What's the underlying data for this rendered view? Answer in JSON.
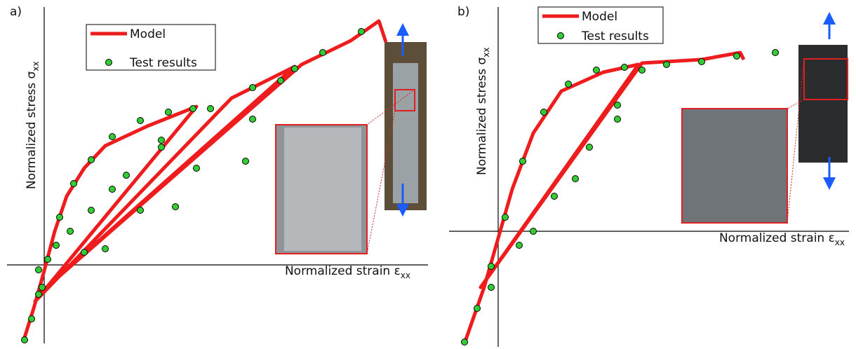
{
  "chart_data": [
    {
      "type": "line",
      "panel_label": "a)",
      "x_label": "Normalized strain ε",
      "x_label_sub": "xx",
      "y_label": "Normalized stress σ",
      "y_label_sub": "xx",
      "xlim": [
        -0.53,
        5.47
      ],
      "ylim": [
        -1.12,
        3.68
      ],
      "series": [
        {
          "name": "Model",
          "kind": "line",
          "color": "#ee1c1c",
          "x": [
            -0.3,
            -0.15,
            -0.01,
            0.15,
            0.32,
            0.57,
            0.87,
            1.47,
            2.17,
            -0.13,
            2.67,
            3.57,
            -0.08,
            3.67,
            4.37,
            4.77,
            4.87
          ],
          "values": [
            -1.1,
            -0.62,
            -0.12,
            0.48,
            0.98,
            1.38,
            1.7,
            1.98,
            2.26,
            -0.52,
            2.38,
            2.83,
            -0.42,
            2.86,
            3.2,
            3.48,
            3.18
          ]
        },
        {
          "name": "Test results",
          "kind": "scatter",
          "color": "#33cc33",
          "x": [
            -0.28,
            -0.18,
            -0.08,
            0.05,
            0.22,
            0.42,
            0.67,
            0.97,
            1.37,
            1.77,
            2.12,
            1.67,
            1.17,
            0.67,
            0.17,
            -0.08,
            0.37,
            0.97,
            1.67,
            2.37,
            2.97,
            3.57,
            2.97,
            2.17,
            1.37,
            0.57,
            -0.03,
            0.87,
            1.87,
            2.87,
            3.37,
            3.97,
            4.52
          ],
          "values": [
            -1.07,
            -0.77,
            -0.42,
            0.08,
            0.68,
            1.16,
            1.5,
            1.83,
            2.06,
            2.18,
            2.23,
            1.78,
            1.28,
            0.78,
            0.28,
            -0.07,
            0.48,
            1.08,
            1.68,
            2.23,
            2.53,
            2.8,
            2.08,
            1.38,
            0.78,
            0.18,
            -0.32,
            0.23,
            0.83,
            1.48,
            2.63,
            3.03,
            3.33
          ]
        }
      ]
    },
    {
      "type": "line",
      "panel_label": "b)",
      "x_label": "Normalized strain ε",
      "x_label_sub": "xx",
      "y_label": "Normalized stress σ",
      "y_label_sub": "xx",
      "xlim": [
        -0.7,
        5.0
      ],
      "ylim": [
        -1.65,
        3.2
      ],
      "series": [
        {
          "name": "Model",
          "kind": "line",
          "color": "#ee1c1c",
          "x": [
            -0.48,
            -0.2,
            0.0,
            0.2,
            0.5,
            0.9,
            1.5,
            2.0,
            -0.25,
            2.05,
            2.9,
            3.45,
            3.5
          ],
          "values": [
            -1.6,
            -0.8,
            -0.1,
            0.6,
            1.4,
            2.0,
            2.27,
            2.38,
            -0.8,
            2.4,
            2.45,
            2.55,
            2.45
          ]
        },
        {
          "name": "Test results",
          "kind": "scatter",
          "color": "#33cc33",
          "x": [
            -0.48,
            -0.3,
            -0.1,
            0.1,
            0.35,
            0.65,
            1.0,
            1.4,
            1.8,
            1.7,
            1.3,
            0.8,
            0.3,
            -0.1,
            0.5,
            1.1,
            1.7,
            2.05,
            2.4,
            2.9,
            3.4,
            3.95
          ],
          "values": [
            -1.58,
            -1.1,
            -0.5,
            0.2,
            1.0,
            1.7,
            2.1,
            2.3,
            2.34,
            1.8,
            1.2,
            0.5,
            -0.2,
            -0.8,
            0.0,
            0.75,
            1.6,
            2.3,
            2.38,
            2.42,
            2.5,
            2.55
          ]
        }
      ]
    }
  ]
}
